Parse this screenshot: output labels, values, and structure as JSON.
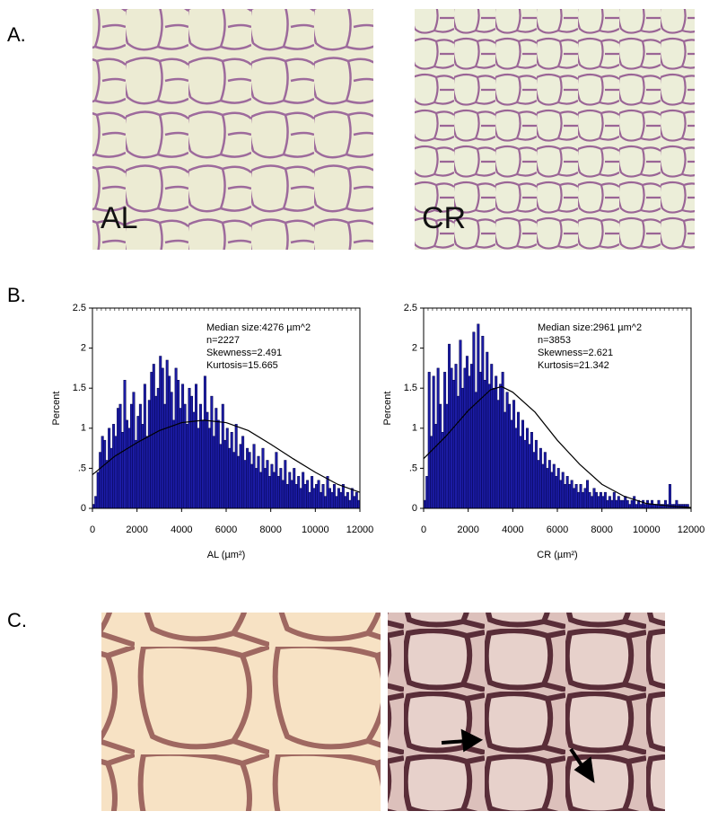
{
  "panel_labels": [
    "A.",
    "B.",
    "C."
  ],
  "image_labels": [
    "AL",
    "CR"
  ],
  "chart_data": [
    {
      "type": "histogram",
      "x_label": "AL (µm²)",
      "y_label": "Percent",
      "annotations": [
        "Median size:4276 µm^2",
        "n=2227",
        "Skewness=2.491",
        "Kurtosis=15.665"
      ],
      "color": "#1c1ca6",
      "edge_color": "#00004a",
      "fit_color": "#000000",
      "xlim": [
        0,
        12000
      ],
      "xticks": [
        0,
        2000,
        4000,
        6000,
        8000,
        10000,
        12000
      ],
      "ylim": [
        0,
        2.5
      ],
      "yticks": [
        0,
        {
          "value": 0.5,
          "label": ".5"
        },
        1,
        1.5,
        2,
        2.5
      ],
      "bins": [
        0,
        100,
        200,
        300,
        400,
        500,
        600,
        700,
        800,
        900,
        1000,
        1100,
        1200,
        1300,
        1400,
        1500,
        1600,
        1700,
        1800,
        1900,
        2000,
        2100,
        2200,
        2300,
        2400,
        2500,
        2600,
        2700,
        2800,
        2900,
        3000,
        3100,
        3200,
        3300,
        3400,
        3500,
        3600,
        3700,
        3800,
        3900,
        4000,
        4100,
        4200,
        4300,
        4400,
        4500,
        4600,
        4700,
        4800,
        4900,
        5000,
        5100,
        5200,
        5300,
        5400,
        5500,
        5600,
        5700,
        5800,
        5900,
        6000,
        6100,
        6200,
        6300,
        6400,
        6500,
        6600,
        6700,
        6800,
        6900,
        7000,
        7100,
        7200,
        7300,
        7400,
        7500,
        7600,
        7700,
        7800,
        7900,
        8000,
        8100,
        8200,
        8300,
        8400,
        8500,
        8600,
        8700,
        8800,
        8900,
        9000,
        9100,
        9200,
        9300,
        9400,
        9500,
        9600,
        9700,
        9800,
        9900,
        10000,
        10100,
        10200,
        10300,
        10400,
        10500,
        10600,
        10700,
        10800,
        10900,
        11000,
        11100,
        11200,
        11300,
        11400,
        11500,
        11600,
        11700,
        11800,
        11900,
        12000
      ],
      "values": [
        0.05,
        0.15,
        0.45,
        0.7,
        0.9,
        0.85,
        0.6,
        1.0,
        0.75,
        1.05,
        0.9,
        1.25,
        1.3,
        0.95,
        1.6,
        1.1,
        1.0,
        1.3,
        1.45,
        0.85,
        1.15,
        1.3,
        1.05,
        1.55,
        0.9,
        1.35,
        1.7,
        1.8,
        1.4,
        1.5,
        1.9,
        1.75,
        1.3,
        1.85,
        1.65,
        1.45,
        1.1,
        1.75,
        1.6,
        1.25,
        1.55,
        1.3,
        1.05,
        1.5,
        1.4,
        1.2,
        1.55,
        1.0,
        1.3,
        1.1,
        1.65,
        1.2,
        1.0,
        1.4,
        0.9,
        1.25,
        1.1,
        0.8,
        1.3,
        0.85,
        1.0,
        0.75,
        0.95,
        0.7,
        1.05,
        0.65,
        0.8,
        0.9,
        0.6,
        0.75,
        0.7,
        0.55,
        0.8,
        0.5,
        0.65,
        0.45,
        0.75,
        0.5,
        0.6,
        0.4,
        0.55,
        0.45,
        0.7,
        0.4,
        0.5,
        0.35,
        0.6,
        0.3,
        0.45,
        0.35,
        0.5,
        0.3,
        0.4,
        0.25,
        0.45,
        0.3,
        0.35,
        0.2,
        0.4,
        0.25,
        0.3,
        0.35,
        0.2,
        0.3,
        0.15,
        0.4,
        0.25,
        0.2,
        0.3,
        0.15,
        0.25,
        0.2,
        0.3,
        0.15,
        0.2,
        0.1,
        0.25,
        0.15,
        0.2,
        0.1
      ],
      "fit": {
        "x": [
          0,
          1000,
          2000,
          3000,
          4000,
          5000,
          6000,
          7000,
          8000,
          9000,
          10000,
          11000,
          12000
        ],
        "values": [
          0.42,
          0.65,
          0.82,
          0.97,
          1.07,
          1.1,
          1.07,
          0.97,
          0.8,
          0.62,
          0.45,
          0.3,
          0.2
        ]
      }
    },
    {
      "type": "histogram",
      "x_label": "CR (µm²)",
      "y_label": "Percent",
      "annotations": [
        "Median size:2961 µm^2",
        "n=3853",
        "Skewness=2.621",
        "Kurtosis=21.342"
      ],
      "color": "#1c1ca6",
      "edge_color": "#00004a",
      "fit_color": "#000000",
      "xlim": [
        0,
        12000
      ],
      "xticks": [
        0,
        2000,
        4000,
        6000,
        8000,
        10000,
        12000
      ],
      "ylim": [
        0,
        2.5
      ],
      "yticks": [
        0,
        {
          "value": 0.5,
          "label": ".5"
        },
        1,
        1.5,
        2,
        2.5
      ],
      "bins": [
        0,
        100,
        200,
        300,
        400,
        500,
        600,
        700,
        800,
        900,
        1000,
        1100,
        1200,
        1300,
        1400,
        1500,
        1600,
        1700,
        1800,
        1900,
        2000,
        2100,
        2200,
        2300,
        2400,
        2500,
        2600,
        2700,
        2800,
        2900,
        3000,
        3100,
        3200,
        3300,
        3400,
        3500,
        3600,
        3700,
        3800,
        3900,
        4000,
        4100,
        4200,
        4300,
        4400,
        4500,
        4600,
        4700,
        4800,
        4900,
        5000,
        5100,
        5200,
        5300,
        5400,
        5500,
        5600,
        5700,
        5800,
        5900,
        6000,
        6100,
        6200,
        6300,
        6400,
        6500,
        6600,
        6700,
        6800,
        6900,
        7000,
        7100,
        7200,
        7300,
        7400,
        7500,
        7600,
        7700,
        7800,
        7900,
        8000,
        8100,
        8200,
        8300,
        8400,
        8500,
        8600,
        8700,
        8800,
        8900,
        9000,
        9100,
        9200,
        9300,
        9400,
        9500,
        9600,
        9700,
        9800,
        9900,
        10000,
        10100,
        10200,
        10300,
        10400,
        10500,
        10600,
        10700,
        10800,
        10900,
        11000,
        11100,
        11200,
        11300,
        11400,
        11500,
        11600,
        11700,
        11800,
        11900,
        12000
      ],
      "values": [
        0.1,
        0.4,
        1.7,
        0.9,
        1.65,
        1.05,
        1.75,
        1.3,
        0.95,
        1.7,
        1.3,
        2.05,
        1.75,
        1.6,
        1.8,
        1.4,
        2.1,
        1.5,
        1.75,
        1.9,
        1.65,
        1.8,
        2.2,
        1.45,
        2.3,
        1.7,
        2.15,
        1.6,
        1.95,
        1.55,
        1.8,
        1.5,
        1.65,
        1.35,
        1.55,
        1.7,
        1.2,
        1.45,
        1.3,
        1.1,
        1.35,
        1.0,
        1.2,
        0.9,
        1.1,
        0.85,
        1.0,
        0.8,
        0.95,
        0.7,
        0.85,
        0.6,
        0.75,
        0.55,
        0.7,
        0.5,
        0.6,
        0.45,
        0.55,
        0.4,
        0.5,
        0.35,
        0.45,
        0.3,
        0.4,
        0.3,
        0.35,
        0.25,
        0.3,
        0.2,
        0.3,
        0.2,
        0.25,
        0.35,
        0.2,
        0.15,
        0.25,
        0.2,
        0.15,
        0.2,
        0.15,
        0.2,
        0.1,
        0.15,
        0.1,
        0.2,
        0.1,
        0.15,
        0.1,
        0.1,
        0.15,
        0.1,
        0.05,
        0.1,
        0.15,
        0.05,
        0.1,
        0.05,
        0.1,
        0.05,
        0.1,
        0.05,
        0.1,
        0.05,
        0.05,
        0.1,
        0.05,
        0.05,
        0.1,
        0.05,
        0.3,
        0.05,
        0.05,
        0.1,
        0.05,
        0.05,
        0.05,
        0.05,
        0.05,
        0.0
      ],
      "fit": {
        "x": [
          0,
          1000,
          2000,
          3000,
          3500,
          4000,
          5000,
          6000,
          7000,
          8000,
          9000,
          10000,
          11000,
          12000
        ],
        "values": [
          0.62,
          0.9,
          1.22,
          1.48,
          1.52,
          1.45,
          1.2,
          0.85,
          0.55,
          0.3,
          0.15,
          0.06,
          0.03,
          0.01
        ]
      }
    }
  ]
}
